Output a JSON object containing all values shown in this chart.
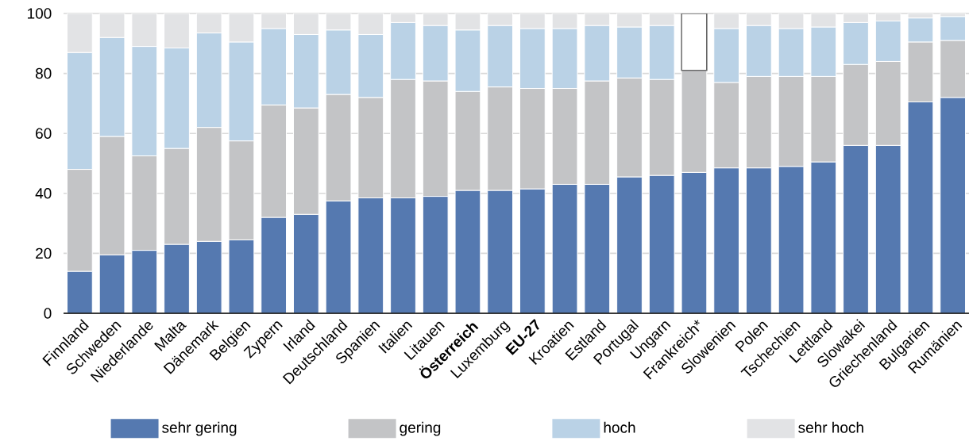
{
  "chart_data": {
    "type": "bar",
    "stacked": true,
    "grid": "y",
    "legend": "bottom",
    "categories": [
      "Finnland",
      "Schweden",
      "Niederlande",
      "Malta",
      "Dänemark",
      "Belgien",
      "Zypern",
      "Irland",
      "Deutschland",
      "Spanien",
      "Italien",
      "Litauen",
      "**Österreich**",
      "Luxemburg",
      "**EU-27**",
      "Kroatien",
      "Estland",
      "Portugal",
      "Ungarn",
      "Frankreich*",
      "Slowenien",
      "Polen",
      "Tschechien",
      "Lettland",
      "Slowakei",
      "Griechenland",
      "Bulgarien",
      "Rumänien"
    ],
    "ylim": [
      0,
      100
    ],
    "yticks": [
      0,
      20,
      40,
      60,
      80,
      100
    ],
    "series": [
      {
        "name": "sehr gering",
        "color": "#5579b0",
        "values": [
          14,
          19.5,
          21,
          23,
          24,
          24.5,
          32,
          33,
          37.5,
          38.5,
          38.5,
          39,
          41,
          41,
          41.5,
          43,
          43,
          45.5,
          46,
          47,
          48.5,
          48.5,
          49,
          50.5,
          56,
          56,
          70.5,
          72
        ]
      },
      {
        "name": "gering",
        "color": "#c3c4c6",
        "values": [
          34,
          39.5,
          31.5,
          32,
          38,
          33,
          37.5,
          35.5,
          35.5,
          33.5,
          39.5,
          38.5,
          33,
          34.5,
          33.5,
          32,
          34.5,
          33,
          32,
          34,
          28.5,
          30.5,
          30,
          28.5,
          27,
          28,
          20,
          19
        ]
      },
      {
        "name": "hoch",
        "color": "#bad2e6",
        "values": [
          39,
          33,
          36.5,
          33.5,
          31.5,
          33,
          25.5,
          24.5,
          21.5,
          21,
          19,
          18.5,
          20.5,
          20.5,
          20,
          20,
          18.5,
          17,
          18,
          null,
          18,
          17,
          16,
          16.5,
          14,
          13.5,
          8,
          8
        ]
      },
      {
        "name": "sehr hoch",
        "color": "#e2e3e5",
        "values": [
          13,
          8,
          11,
          11.5,
          6.5,
          9.5,
          5,
          7,
          5.5,
          7,
          3,
          4,
          5.5,
          4,
          5,
          5,
          4,
          4.5,
          4,
          null,
          5,
          4,
          5,
          4.5,
          3,
          2.5,
          1.5,
          1
        ]
      },
      {
        "color": "#ffffff",
        "values": [
          null,
          null,
          null,
          null,
          null,
          null,
          null,
          null,
          null,
          null,
          null,
          null,
          null,
          null,
          null,
          null,
          null,
          null,
          null,
          19,
          null,
          null,
          null,
          null,
          null,
          null,
          null,
          null
        ]
      }
    ]
  }
}
